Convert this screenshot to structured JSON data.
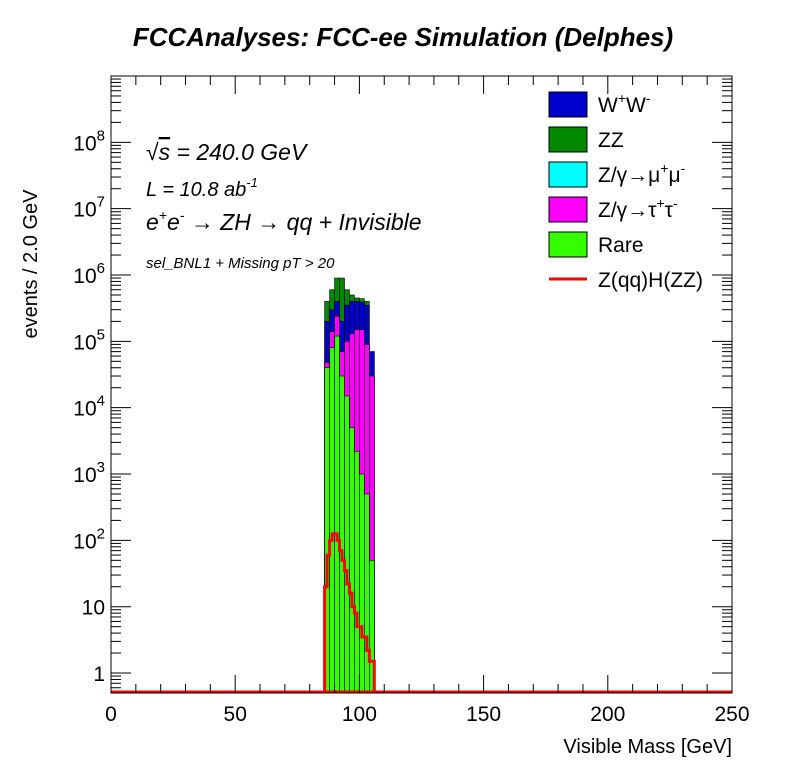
{
  "chart_data": {
    "type": "stacked-histogram",
    "title": "FCCAnalyses: FCC-ee Simulation (Delphes)",
    "xlabel": "Visible Mass [GeV]",
    "ylabel": "events / 2.0 GeV",
    "xlim": [
      0,
      250
    ],
    "ylim": [
      0.5,
      1000000000
    ],
    "yscale": "log",
    "bin_width": 2.0,
    "x_ticks": [
      "0",
      "50",
      "100",
      "150",
      "200",
      "250"
    ],
    "y_ticks": [
      {
        "base": "",
        "exp": "",
        "text": "1",
        "value": 1
      },
      {
        "base": "",
        "exp": "",
        "text": "10",
        "value": 10
      },
      {
        "base": "10",
        "exp": "2",
        "text": "",
        "value": 100
      },
      {
        "base": "10",
        "exp": "3",
        "text": "",
        "value": 1000
      },
      {
        "base": "10",
        "exp": "4",
        "text": "",
        "value": 10000
      },
      {
        "base": "10",
        "exp": "5",
        "text": "",
        "value": 100000
      },
      {
        "base": "10",
        "exp": "6",
        "text": "",
        "value": 1000000
      },
      {
        "base": "10",
        "exp": "7",
        "text": "",
        "value": 10000000
      },
      {
        "base": "10",
        "exp": "8",
        "text": "",
        "value": 100000000
      }
    ],
    "bin_edges": [
      86,
      88,
      90,
      92,
      94,
      96,
      98,
      100,
      102,
      104,
      106
    ],
    "stack_series": [
      {
        "name": "Rare",
        "color": "#33ff00",
        "values": [
          40000,
          80000,
          120000,
          30000,
          15000,
          5000,
          2200,
          1000,
          500,
          50
        ]
      },
      {
        "name": "Z/γ→τ⁺τ⁻",
        "color": "#ff00ff",
        "values": [
          8000,
          60000,
          120000,
          40000,
          85000,
          125000,
          148000,
          149000,
          89500,
          29950
        ]
      },
      {
        "name": "Z/γ→μ⁺μ⁻",
        "color": "#00ffff",
        "values": [
          0,
          0,
          0,
          0,
          0,
          0,
          0,
          0,
          0,
          0
        ]
      },
      {
        "name": "W⁺W⁻",
        "color": "#0000cc",
        "values": [
          152000,
          160000,
          160000,
          130000,
          250000,
          270000,
          250000,
          240000,
          260000,
          40000
        ]
      },
      {
        "name": "ZZ",
        "color": "#008800",
        "values": [
          200000,
          300000,
          500000,
          700000,
          250000,
          100000,
          50000,
          50000,
          50000,
          0
        ]
      }
    ],
    "overlay_series": {
      "name": "Z(qq)H(ZZ)",
      "color": "#ff0000",
      "bin_edges": [
        86,
        87,
        88,
        89,
        90,
        91,
        92,
        93,
        94,
        95,
        96,
        97,
        98,
        99,
        100,
        101,
        102,
        103,
        104,
        105,
        106
      ],
      "values": [
        20,
        60,
        100,
        125,
        125,
        100,
        70,
        50,
        35,
        22,
        16,
        10,
        8,
        5,
        5,
        3.5,
        3.5,
        2.2,
        1.5,
        1.5
      ]
    },
    "legend": {
      "placement": "top-right",
      "entries": [
        {
          "label": "W",
          "sup1": "+",
          "label2": "W",
          "sup2": "-",
          "color": "#0000cc",
          "kind": "box"
        },
        {
          "label": "ZZ",
          "sup1": "",
          "label2": "",
          "sup2": "",
          "color": "#008800",
          "kind": "box"
        },
        {
          "label": "Z/γ→μ",
          "sup1": "+",
          "label2": "μ",
          "sup2": "-",
          "color": "#00ffff",
          "kind": "box"
        },
        {
          "label": "Z/γ→τ",
          "sup1": "+",
          "label2": "τ",
          "sup2": "-",
          "color": "#ff00ff",
          "kind": "box"
        },
        {
          "label": "Rare",
          "sup1": "",
          "label2": "",
          "sup2": "",
          "color": "#33ff00",
          "kind": "box"
        },
        {
          "label": "Z(qq)H(ZZ)",
          "sup1": "",
          "label2": "",
          "sup2": "",
          "color": "#ff0000",
          "kind": "line"
        }
      ]
    },
    "annotations": {
      "energy_sqrt": "√",
      "energy_s": "s",
      "energy_rest": " = 240.0 GeV",
      "lumi_text": "L = 10.8 ab",
      "lumi_exp": "-1",
      "process_e1": "e",
      "process_e1_sup": "+",
      "process_e2": "e",
      "process_e2_sup": "-",
      "process_rest": " → ZH  → qq + Invisible",
      "selection": "sel_BNL1 + Missing pT > 20"
    }
  }
}
